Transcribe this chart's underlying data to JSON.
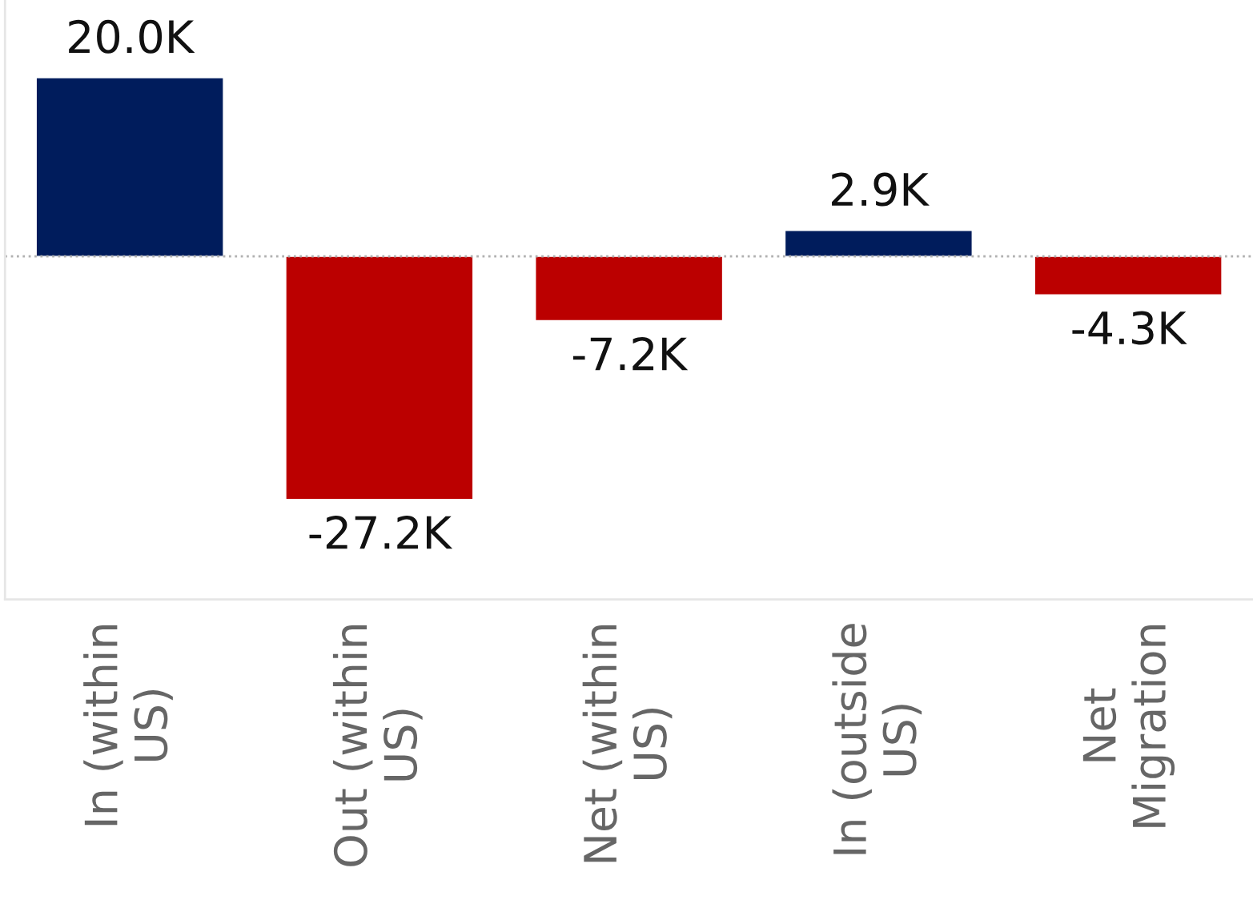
{
  "chart_data": {
    "type": "bar",
    "categories": [
      "In (within US)",
      "Out (within US)",
      "Net (within US)",
      "In (outside US)",
      "Net Migration"
    ],
    "values": [
      20000,
      -27200,
      -7200,
      2900,
      -4300
    ],
    "value_labels": [
      "20.0K",
      "-27.2K",
      "-7.2K",
      "2.9K",
      "-4.3K"
    ],
    "colors": [
      "#001c5c",
      "#bb0000",
      "#bb0000",
      "#001c5c",
      "#bb0000"
    ],
    "ylim": [
      -38400,
      28700
    ],
    "tick_labels": "x",
    "ref_lines": [
      {
        "axis": "y",
        "value": 0,
        "color": "#b0b0b0",
        "line_style": "dotted"
      }
    ],
    "grid": false,
    "legend": false
  }
}
